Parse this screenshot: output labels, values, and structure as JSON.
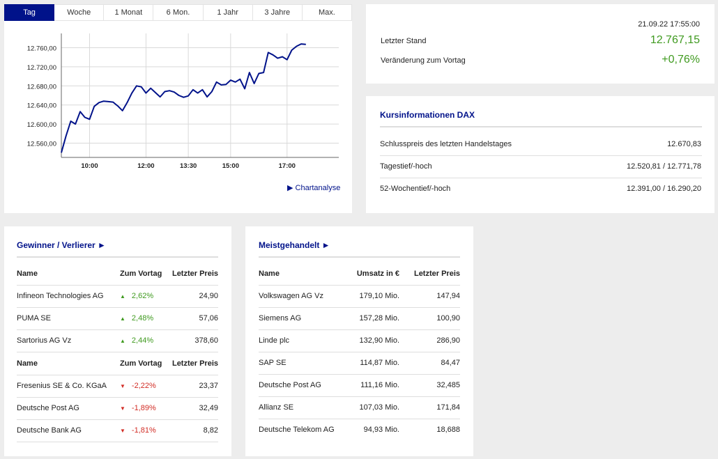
{
  "tabs": [
    "Tag",
    "Woche",
    "1 Monat",
    "6 Mon.",
    "1 Jahr",
    "3 Jahre",
    "Max."
  ],
  "chart_data": {
    "type": "line",
    "ylim": [
      12530,
      12790
    ],
    "y_ticks": [
      12560,
      12600,
      12640,
      12680,
      12720,
      12760
    ],
    "y_tick_labels": [
      "12.560,00",
      "12.600,00",
      "12.640,00",
      "12.680,00",
      "12.720,00",
      "12.760,00"
    ],
    "x_ticks": [
      "10:00",
      "12:00",
      "13:30",
      "15:00",
      "17:00"
    ],
    "line_color": "#00128a",
    "points": [
      [
        "9:00",
        12540
      ],
      [
        "9:10",
        12575
      ],
      [
        "9:20",
        12606
      ],
      [
        "9:30",
        12600
      ],
      [
        "9:40",
        12626
      ],
      [
        "9:50",
        12614
      ],
      [
        "10:00",
        12610
      ],
      [
        "10:10",
        12637
      ],
      [
        "10:20",
        12645
      ],
      [
        "10:30",
        12648
      ],
      [
        "10:40",
        12647
      ],
      [
        "10:50",
        12646
      ],
      [
        "11:00",
        12638
      ],
      [
        "11:10",
        12628
      ],
      [
        "11:20",
        12645
      ],
      [
        "11:30",
        12665
      ],
      [
        "11:40",
        12680
      ],
      [
        "11:50",
        12678
      ],
      [
        "12:00",
        12665
      ],
      [
        "12:10",
        12675
      ],
      [
        "12:20",
        12666
      ],
      [
        "12:30",
        12657
      ],
      [
        "12:40",
        12668
      ],
      [
        "12:50",
        12670
      ],
      [
        "13:00",
        12667
      ],
      [
        "13:10",
        12660
      ],
      [
        "13:20",
        12656
      ],
      [
        "13:30",
        12659
      ],
      [
        "13:40",
        12672
      ],
      [
        "13:50",
        12665
      ],
      [
        "14:00",
        12672
      ],
      [
        "14:10",
        12657
      ],
      [
        "14:20",
        12668
      ],
      [
        "14:30",
        12688
      ],
      [
        "14:40",
        12682
      ],
      [
        "14:50",
        12683
      ],
      [
        "15:00",
        12692
      ],
      [
        "15:10",
        12688
      ],
      [
        "15:20",
        12694
      ],
      [
        "15:30",
        12674
      ],
      [
        "15:40",
        12708
      ],
      [
        "15:50",
        12685
      ],
      [
        "16:00",
        12706
      ],
      [
        "16:10",
        12708
      ],
      [
        "16:20",
        12750
      ],
      [
        "16:30",
        12745
      ],
      [
        "16:40",
        12738
      ],
      [
        "16:50",
        12741
      ],
      [
        "17:00",
        12735
      ],
      [
        "17:10",
        12755
      ],
      [
        "17:20",
        12763
      ],
      [
        "17:30",
        12768
      ],
      [
        "17:40",
        12767
      ]
    ]
  },
  "chart_link": "Chartanalyse",
  "summary": {
    "timestamp": "21.09.22 17:55:00",
    "last_label": "Letzter Stand",
    "last_value": "12.767,15",
    "change_label": "Veränderung zum Vortag",
    "change_value": "+0,76%"
  },
  "kurs": {
    "title": "Kursinformationen DAX",
    "rows": [
      {
        "label": "Schlusspreis des letzten Handelstages",
        "value": "12.670,83"
      },
      {
        "label": "Tagestief/-hoch",
        "value": "12.520,81 / 12.771,78"
      },
      {
        "label": "52-Wochentief/-hoch",
        "value": "12.391,00 / 16.290,20"
      }
    ]
  },
  "gainers": {
    "title": "Gewinner / Verlierer ►",
    "headers": [
      "Name",
      "Zum Vortag",
      "Letzter Preis"
    ],
    "winners": [
      {
        "name": "Infineon Technologies AG",
        "change": "2,62%",
        "price": "24,90"
      },
      {
        "name": "PUMA SE",
        "change": "2,48%",
        "price": "57,06"
      },
      {
        "name": "Sartorius AG Vz",
        "change": "2,44%",
        "price": "378,60"
      }
    ],
    "losers": [
      {
        "name": "Fresenius SE & Co. KGaA",
        "change": "-2,22%",
        "price": "23,37"
      },
      {
        "name": "Deutsche Post AG",
        "change": "-1,89%",
        "price": "32,49"
      },
      {
        "name": "Deutsche Bank AG",
        "change": "-1,81%",
        "price": "8,82"
      }
    ],
    "up_icon": "triangle-up-icon",
    "down_icon": "triangle-down-icon"
  },
  "traded": {
    "title": "Meistgehandelt ►",
    "headers": [
      "Name",
      "Umsatz in €",
      "Letzter Preis"
    ],
    "rows": [
      {
        "name": "Volkswagen AG Vz",
        "volume": "179,10 Mio.",
        "price": "147,94"
      },
      {
        "name": "Siemens AG",
        "volume": "157,28 Mio.",
        "price": "100,90"
      },
      {
        "name": "Linde plc",
        "volume": "132,90 Mio.",
        "price": "286,90"
      },
      {
        "name": "SAP SE",
        "volume": "114,87 Mio.",
        "price": "84,47"
      },
      {
        "name": "Deutsche Post AG",
        "volume": "111,16 Mio.",
        "price": "32,485"
      },
      {
        "name": "Allianz SE",
        "volume": "107,03 Mio.",
        "price": "171,84"
      },
      {
        "name": "Deutsche Telekom AG",
        "volume": "94,93 Mio.",
        "price": "18,688"
      }
    ]
  },
  "colors": {
    "accent": "#00128a",
    "positive": "#3f9a1f",
    "negative": "#d22d25"
  }
}
